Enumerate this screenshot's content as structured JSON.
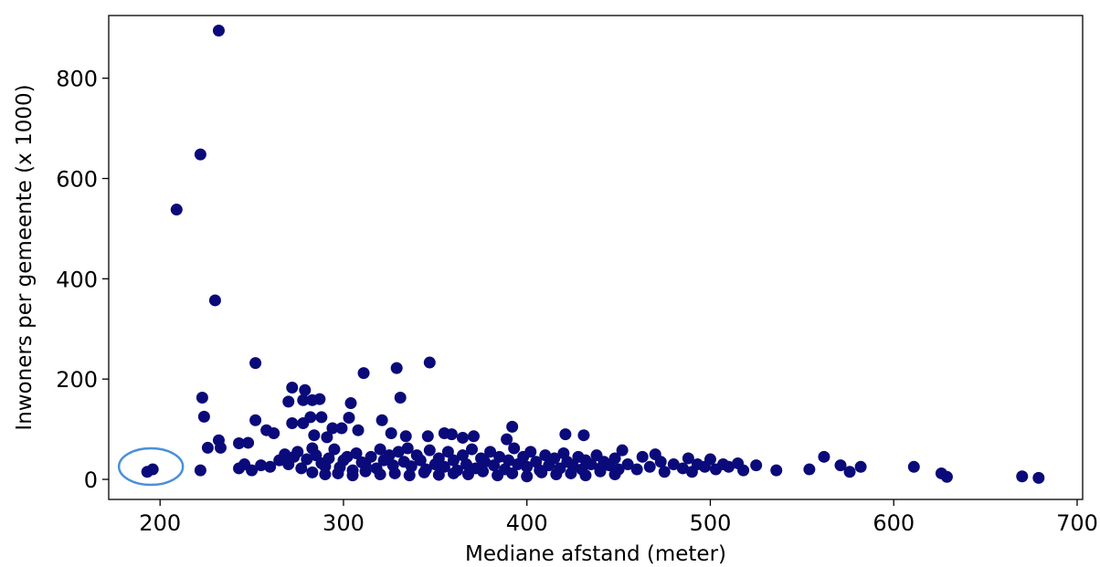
{
  "chart_data": {
    "type": "scatter",
    "title": "",
    "xlabel": "Mediane afstand (meter)",
    "ylabel": "Inwoners per gemeente (x 1000)",
    "xlim": [
      172,
      703
    ],
    "ylim": [
      -40,
      925
    ],
    "xticks": [
      200,
      300,
      400,
      500,
      600,
      700
    ],
    "yticks": [
      0,
      200,
      400,
      600,
      800
    ],
    "grid": false,
    "marker_color": "#0a0a7a",
    "highlight": {
      "shape": "ellipse",
      "color": "#4a90d9",
      "center": [
        196,
        20
      ]
    },
    "series": [
      {
        "name": "",
        "points": [
          [
            193,
            15
          ],
          [
            196,
            20
          ],
          [
            222,
            18
          ],
          [
            232,
            895
          ],
          [
            222,
            648
          ],
          [
            209,
            538
          ],
          [
            230,
            357
          ],
          [
            223,
            163
          ],
          [
            224,
            125
          ],
          [
            226,
            63
          ],
          [
            232,
            78
          ],
          [
            233,
            63
          ],
          [
            243,
            72
          ],
          [
            248,
            73
          ],
          [
            252,
            232
          ],
          [
            252,
            118
          ],
          [
            258,
            98
          ],
          [
            262,
            92
          ],
          [
            272,
            183
          ],
          [
            270,
            155
          ],
          [
            279,
            178
          ],
          [
            278,
            158
          ],
          [
            283,
            158
          ],
          [
            287,
            160
          ],
          [
            272,
            112
          ],
          [
            278,
            112
          ],
          [
            282,
            124
          ],
          [
            288,
            124
          ],
          [
            284,
            88
          ],
          [
            291,
            84
          ],
          [
            294,
            102
          ],
          [
            299,
            102
          ],
          [
            303,
            123
          ],
          [
            304,
            152
          ],
          [
            308,
            98
          ],
          [
            311,
            212
          ],
          [
            321,
            118
          ],
          [
            326,
            92
          ],
          [
            329,
            222
          ],
          [
            331,
            163
          ],
          [
            334,
            86
          ],
          [
            347,
            233
          ],
          [
            346,
            86
          ],
          [
            355,
            92
          ],
          [
            359,
            90
          ],
          [
            365,
            83
          ],
          [
            371,
            86
          ],
          [
            392,
            105
          ],
          [
            389,
            80
          ],
          [
            421,
            90
          ],
          [
            431,
            88
          ],
          [
            452,
            58
          ],
          [
            243,
            22
          ],
          [
            246,
            30
          ],
          [
            250,
            18
          ],
          [
            255,
            28
          ],
          [
            260,
            25
          ],
          [
            265,
            38
          ],
          [
            268,
            50
          ],
          [
            270,
            30
          ],
          [
            273,
            45
          ],
          [
            275,
            55
          ],
          [
            277,
            22
          ],
          [
            280,
            40
          ],
          [
            283,
            62
          ],
          [
            285,
            48
          ],
          [
            288,
            32
          ],
          [
            290,
            26
          ],
          [
            292,
            42
          ],
          [
            295,
            60
          ],
          [
            298,
            24
          ],
          [
            300,
            38
          ],
          [
            302,
            45
          ],
          [
            305,
            18
          ],
          [
            307,
            52
          ],
          [
            310,
            34
          ],
          [
            312,
            28
          ],
          [
            315,
            45
          ],
          [
            318,
            22
          ],
          [
            320,
            60
          ],
          [
            322,
            38
          ],
          [
            325,
            48
          ],
          [
            327,
            28
          ],
          [
            330,
            55
          ],
          [
            333,
            35
          ],
          [
            335,
            62
          ],
          [
            337,
            26
          ],
          [
            340,
            48
          ],
          [
            342,
            38
          ],
          [
            345,
            20
          ],
          [
            347,
            58
          ],
          [
            350,
            30
          ],
          [
            352,
            42
          ],
          [
            355,
            25
          ],
          [
            357,
            55
          ],
          [
            360,
            38
          ],
          [
            362,
            18
          ],
          [
            365,
            48
          ],
          [
            367,
            30
          ],
          [
            370,
            60
          ],
          [
            372,
            22
          ],
          [
            375,
            42
          ],
          [
            377,
            35
          ],
          [
            380,
            55
          ],
          [
            382,
            28
          ],
          [
            385,
            45
          ],
          [
            388,
            20
          ],
          [
            390,
            38
          ],
          [
            393,
            62
          ],
          [
            395,
            30
          ],
          [
            398,
            45
          ],
          [
            400,
            25
          ],
          [
            402,
            55
          ],
          [
            405,
            35
          ],
          [
            407,
            18
          ],
          [
            410,
            48
          ],
          [
            412,
            28
          ],
          [
            415,
            42
          ],
          [
            418,
            22
          ],
          [
            420,
            52
          ],
          [
            422,
            35
          ],
          [
            425,
            28
          ],
          [
            428,
            45
          ],
          [
            430,
            20
          ],
          [
            432,
            38
          ],
          [
            435,
            30
          ],
          [
            438,
            48
          ],
          [
            440,
            22
          ],
          [
            442,
            35
          ],
          [
            445,
            28
          ],
          [
            448,
            42
          ],
          [
            450,
            20
          ],
          [
            283,
            14
          ],
          [
            290,
            10
          ],
          [
            297,
            12
          ],
          [
            305,
            8
          ],
          [
            312,
            16
          ],
          [
            320,
            10
          ],
          [
            328,
            12
          ],
          [
            336,
            8
          ],
          [
            344,
            14
          ],
          [
            352,
            9
          ],
          [
            360,
            12
          ],
          [
            368,
            10
          ],
          [
            376,
            16
          ],
          [
            384,
            8
          ],
          [
            392,
            12
          ],
          [
            400,
            6
          ],
          [
            408,
            14
          ],
          [
            416,
            10
          ],
          [
            424,
            12
          ],
          [
            432,
            8
          ],
          [
            440,
            16
          ],
          [
            448,
            10
          ],
          [
            455,
            30
          ],
          [
            460,
            20
          ],
          [
            463,
            45
          ],
          [
            467,
            25
          ],
          [
            470,
            50
          ],
          [
            473,
            35
          ],
          [
            475,
            15
          ],
          [
            480,
            30
          ],
          [
            485,
            22
          ],
          [
            488,
            42
          ],
          [
            490,
            15
          ],
          [
            493,
            30
          ],
          [
            497,
            25
          ],
          [
            500,
            40
          ],
          [
            503,
            20
          ],
          [
            507,
            30
          ],
          [
            510,
            25
          ],
          [
            515,
            32
          ],
          [
            518,
            18
          ],
          [
            525,
            28
          ],
          [
            536,
            18
          ],
          [
            554,
            20
          ],
          [
            562,
            45
          ],
          [
            571,
            28
          ],
          [
            576,
            15
          ],
          [
            582,
            25
          ],
          [
            611,
            25
          ],
          [
            626,
            12
          ],
          [
            629,
            5
          ],
          [
            670,
            6
          ],
          [
            679,
            3
          ]
        ]
      }
    ]
  }
}
